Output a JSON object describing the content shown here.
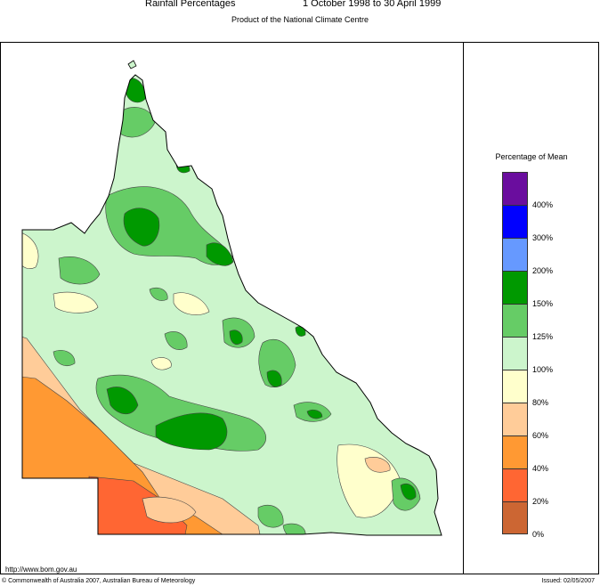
{
  "header": {
    "title": "Rainfall Percentages",
    "period": "1 October 1998 to 30 April 1999",
    "subtitle": "Product of the National Climate Centre"
  },
  "legend": {
    "title": "Percentage of Mean",
    "bands": [
      {
        "label": "400%",
        "color": "#6a0d9e"
      },
      {
        "label": "300%",
        "color": "#0000ff"
      },
      {
        "label": "200%",
        "color": "#6699ff"
      },
      {
        "label": "150%",
        "color": "#009900"
      },
      {
        "label": "125%",
        "color": "#66cc66"
      },
      {
        "label": "100%",
        "color": "#ccf5cc"
      },
      {
        "label": "80%",
        "color": "#ffffcc"
      },
      {
        "label": "60%",
        "color": "#ffcc99"
      },
      {
        "label": "40%",
        "color": "#ff9933"
      },
      {
        "label": "20%",
        "color": "#ff6633"
      },
      {
        "label": "0%",
        "color": "#cc6633"
      }
    ]
  },
  "footer": {
    "url": "http://www.bom.gov.au",
    "copyright": "© Commonwealth of Australia 2007, Australian Bureau of Meteorology",
    "issued": "Issued: 02/05/2007"
  }
}
